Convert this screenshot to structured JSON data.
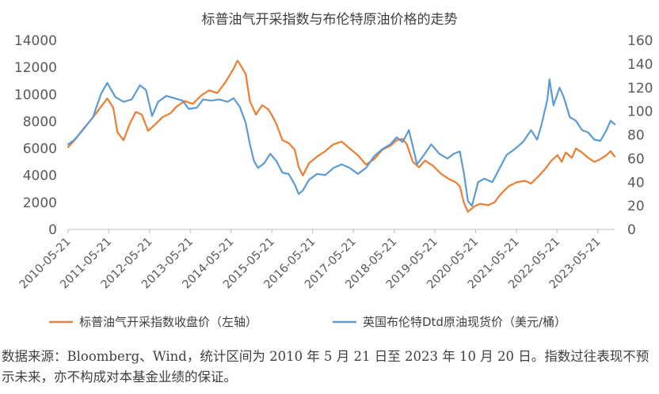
{
  "colors": {
    "sp_oil_gas": "#ED7D31",
    "brent": "#5B9BD5",
    "axis": "#bfbfbf",
    "text": "#595959"
  },
  "chart_data": {
    "type": "line",
    "title": "标普油气开采指数与布伦特原油价格的走势",
    "x_tick_labels": [
      "2010-05-21",
      "2011-05-21",
      "2012-05-21",
      "2013-05-21",
      "2014-05-21",
      "2015-05-21",
      "2016-05-21",
      "2017-05-21",
      "2018-05-21",
      "2019-05-21",
      "2020-05-21",
      "2021-05-21",
      "2022-05-21",
      "2023-05-21"
    ],
    "x_range": [
      2010.39,
      2023.8
    ],
    "y_left": {
      "min": 0,
      "max": 14000,
      "ticks": [
        0,
        2000,
        4000,
        6000,
        8000,
        10000,
        12000,
        14000
      ]
    },
    "y_right": {
      "min": 0,
      "max": 160,
      "ticks": [
        0,
        20,
        40,
        60,
        80,
        100,
        120,
        140,
        160
      ]
    },
    "legend_position": "bottom",
    "grid": false,
    "series": [
      {
        "name": "标普油气开采指数收盘价（左轴）",
        "axis": "left",
        "color": "#ED7D31",
        "points": [
          [
            2010.39,
            6100
          ],
          [
            2010.55,
            6600
          ],
          [
            2010.75,
            7400
          ],
          [
            2011.0,
            8300
          ],
          [
            2011.2,
            9100
          ],
          [
            2011.35,
            9700
          ],
          [
            2011.5,
            9000
          ],
          [
            2011.6,
            7200
          ],
          [
            2011.75,
            6600
          ],
          [
            2011.9,
            7800
          ],
          [
            2012.05,
            8700
          ],
          [
            2012.2,
            8500
          ],
          [
            2012.35,
            7300
          ],
          [
            2012.5,
            7700
          ],
          [
            2012.7,
            8300
          ],
          [
            2012.9,
            8600
          ],
          [
            2013.05,
            9100
          ],
          [
            2013.25,
            9500
          ],
          [
            2013.45,
            9300
          ],
          [
            2013.65,
            9900
          ],
          [
            2013.85,
            10300
          ],
          [
            2014.05,
            10100
          ],
          [
            2014.25,
            10900
          ],
          [
            2014.45,
            11900
          ],
          [
            2014.55,
            12500
          ],
          [
            2014.65,
            12000
          ],
          [
            2014.75,
            11500
          ],
          [
            2014.85,
            9500
          ],
          [
            2015.0,
            8500
          ],
          [
            2015.15,
            9200
          ],
          [
            2015.3,
            8900
          ],
          [
            2015.4,
            8400
          ],
          [
            2015.5,
            7800
          ],
          [
            2015.65,
            6600
          ],
          [
            2015.8,
            6400
          ],
          [
            2015.95,
            5900
          ],
          [
            2016.05,
            4600
          ],
          [
            2016.15,
            4000
          ],
          [
            2016.3,
            4900
          ],
          [
            2016.5,
            5400
          ],
          [
            2016.7,
            5800
          ],
          [
            2016.9,
            6300
          ],
          [
            2017.1,
            6500
          ],
          [
            2017.3,
            6000
          ],
          [
            2017.5,
            5500
          ],
          [
            2017.7,
            4800
          ],
          [
            2017.9,
            5200
          ],
          [
            2018.1,
            5900
          ],
          [
            2018.3,
            6200
          ],
          [
            2018.45,
            6600
          ],
          [
            2018.6,
            6700
          ],
          [
            2018.7,
            6300
          ],
          [
            2018.85,
            5000
          ],
          [
            2019.0,
            4600
          ],
          [
            2019.15,
            5100
          ],
          [
            2019.35,
            4700
          ],
          [
            2019.55,
            4100
          ],
          [
            2019.75,
            3700
          ],
          [
            2019.9,
            3500
          ],
          [
            2020.0,
            3200
          ],
          [
            2020.1,
            2000
          ],
          [
            2020.2,
            1300
          ],
          [
            2020.35,
            1700
          ],
          [
            2020.5,
            1900
          ],
          [
            2020.7,
            1800
          ],
          [
            2020.85,
            2000
          ],
          [
            2021.0,
            2600
          ],
          [
            2021.2,
            3200
          ],
          [
            2021.4,
            3500
          ],
          [
            2021.6,
            3600
          ],
          [
            2021.75,
            3400
          ],
          [
            2021.95,
            4000
          ],
          [
            2022.1,
            4500
          ],
          [
            2022.25,
            5100
          ],
          [
            2022.4,
            5500
          ],
          [
            2022.5,
            5000
          ],
          [
            2022.6,
            5700
          ],
          [
            2022.75,
            5300
          ],
          [
            2022.85,
            6000
          ],
          [
            2023.0,
            5700
          ],
          [
            2023.15,
            5300
          ],
          [
            2023.3,
            5000
          ],
          [
            2023.45,
            5200
          ],
          [
            2023.6,
            5500
          ],
          [
            2023.7,
            5800
          ],
          [
            2023.8,
            5400
          ]
        ]
      },
      {
        "name": "英国布伦特Dtd原油现货价（美元/桶）",
        "axis": "right",
        "color": "#5B9BD5",
        "points": [
          [
            2010.39,
            72
          ],
          [
            2010.55,
            76
          ],
          [
            2010.75,
            84
          ],
          [
            2011.0,
            95
          ],
          [
            2011.2,
            115
          ],
          [
            2011.35,
            124
          ],
          [
            2011.55,
            112
          ],
          [
            2011.75,
            108
          ],
          [
            2011.95,
            110
          ],
          [
            2012.15,
            122
          ],
          [
            2012.3,
            118
          ],
          [
            2012.45,
            96
          ],
          [
            2012.6,
            108
          ],
          [
            2012.8,
            113
          ],
          [
            2013.0,
            111
          ],
          [
            2013.2,
            109
          ],
          [
            2013.35,
            102
          ],
          [
            2013.55,
            103
          ],
          [
            2013.7,
            110
          ],
          [
            2013.9,
            109
          ],
          [
            2014.1,
            110
          ],
          [
            2014.3,
            108
          ],
          [
            2014.45,
            111
          ],
          [
            2014.6,
            104
          ],
          [
            2014.75,
            90
          ],
          [
            2014.85,
            72
          ],
          [
            2014.95,
            58
          ],
          [
            2015.05,
            52
          ],
          [
            2015.2,
            56
          ],
          [
            2015.35,
            64
          ],
          [
            2015.5,
            58
          ],
          [
            2015.65,
            48
          ],
          [
            2015.8,
            47
          ],
          [
            2015.95,
            38
          ],
          [
            2016.05,
            30
          ],
          [
            2016.15,
            33
          ],
          [
            2016.3,
            42
          ],
          [
            2016.5,
            47
          ],
          [
            2016.7,
            46
          ],
          [
            2016.9,
            52
          ],
          [
            2017.1,
            55
          ],
          [
            2017.3,
            52
          ],
          [
            2017.5,
            47
          ],
          [
            2017.7,
            52
          ],
          [
            2017.9,
            62
          ],
          [
            2018.1,
            68
          ],
          [
            2018.3,
            72
          ],
          [
            2018.45,
            78
          ],
          [
            2018.6,
            74
          ],
          [
            2018.75,
            84
          ],
          [
            2018.85,
            70
          ],
          [
            2018.95,
            55
          ],
          [
            2019.1,
            62
          ],
          [
            2019.3,
            72
          ],
          [
            2019.5,
            64
          ],
          [
            2019.7,
            60
          ],
          [
            2019.85,
            64
          ],
          [
            2020.0,
            66
          ],
          [
            2020.1,
            48
          ],
          [
            2020.2,
            24
          ],
          [
            2020.3,
            20
          ],
          [
            2020.45,
            40
          ],
          [
            2020.6,
            43
          ],
          [
            2020.8,
            40
          ],
          [
            2020.95,
            50
          ],
          [
            2021.15,
            63
          ],
          [
            2021.35,
            68
          ],
          [
            2021.55,
            74
          ],
          [
            2021.75,
            84
          ],
          [
            2021.9,
            76
          ],
          [
            2022.0,
            88
          ],
          [
            2022.15,
            110
          ],
          [
            2022.2,
            127
          ],
          [
            2022.3,
            105
          ],
          [
            2022.45,
            120
          ],
          [
            2022.55,
            112
          ],
          [
            2022.7,
            95
          ],
          [
            2022.85,
            92
          ],
          [
            2023.0,
            84
          ],
          [
            2023.15,
            82
          ],
          [
            2023.3,
            76
          ],
          [
            2023.45,
            75
          ],
          [
            2023.6,
            84
          ],
          [
            2023.7,
            92
          ],
          [
            2023.8,
            89
          ]
        ]
      }
    ]
  },
  "footnote": "数据来源：Bloomberg、Wind，统计区间为 2010 年 5 月 21 日至 2023 年 10 月 20 日。指数过往表现不预示未来，亦不构成对本基金业绩的保证。"
}
